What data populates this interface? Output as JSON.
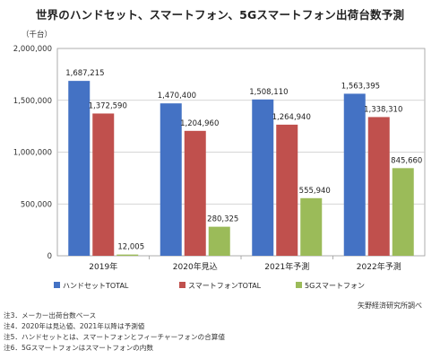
{
  "chart_data": {
    "type": "bar",
    "title": "世界のハンドセット、スマートフォン、5Gスマートフォン出荷台数予測",
    "ylabel": "（千台）",
    "xlabel": "",
    "ylim": [
      0,
      2000000
    ],
    "yticks": [
      "0",
      "500,000",
      "1,000,000",
      "1,500,000",
      "2,000,000"
    ],
    "ytick_values": [
      0,
      500000,
      1000000,
      1500000,
      2000000
    ],
    "categories": [
      "2019年",
      "2020年見込",
      "2021年予測",
      "2022年予測"
    ],
    "series": [
      {
        "name": "ハンドセットTOTAL",
        "color": "#4472c4",
        "values": [
          1687215,
          1470400,
          1508110,
          1563395
        ],
        "labels": [
          "1,687,215",
          "1,470,400",
          "1,508,110",
          "1,563,395"
        ]
      },
      {
        "name": "スマートフォンTOTAL",
        "color": "#c0504d",
        "values": [
          1372590,
          1204960,
          1264940,
          1338310
        ],
        "labels": [
          "1,372,590",
          "1,204,960",
          "1,264,940",
          "1,338,310"
        ]
      },
      {
        "name": "5Gスマートフォン",
        "color": "#9bbb59",
        "values": [
          12005,
          280325,
          555940,
          845660
        ],
        "labels": [
          "12,005",
          "280,325",
          "555,940",
          "845,660"
        ]
      }
    ],
    "grid": true,
    "legend_position": "bottom"
  },
  "credit": "矢野経済研究所調べ",
  "notes": [
    "注3．メーカー出荷台数ベース",
    "注4．2020年は見込値、2021年以降は予測値",
    "注5．ハンドセットとは、スマートフォンとフィーチャーフォンの合算値",
    "注6．5Gスマートフォンはスマートフォンの内数"
  ]
}
